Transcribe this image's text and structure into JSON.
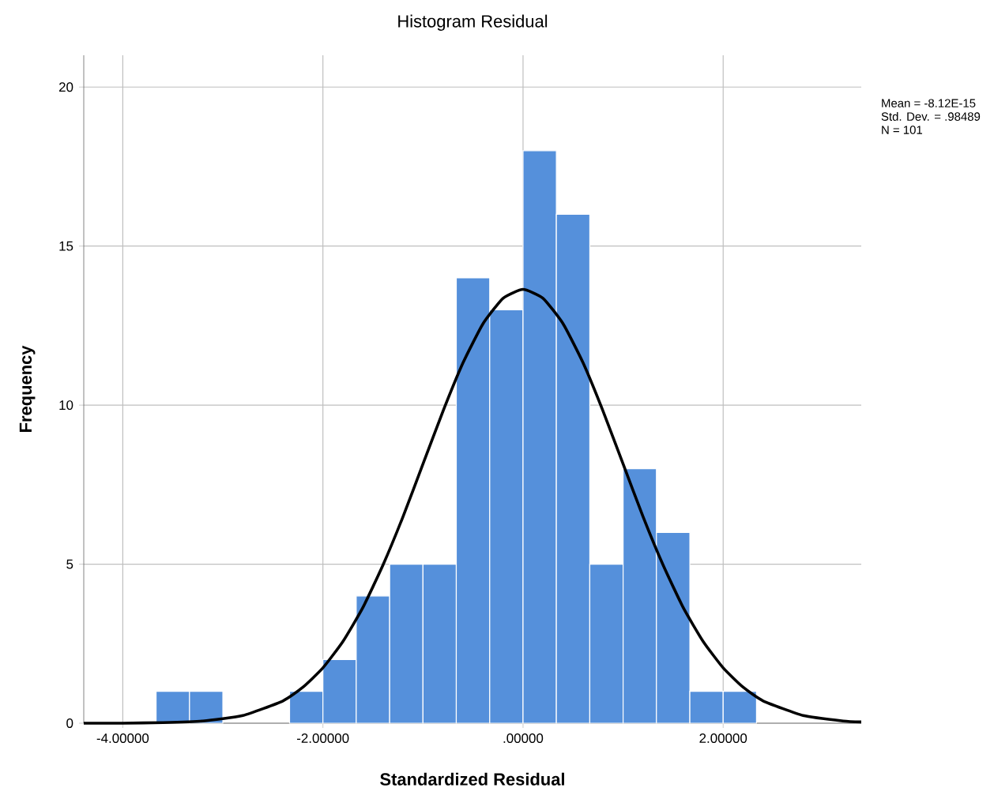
{
  "chart_data": {
    "type": "histogram",
    "title": "Histogram Residual",
    "xlabel": "Standardized Residual",
    "ylabel": "Frequency",
    "series": [
      {
        "type": "histogram",
        "color": "#5590db",
        "bins": [
          -3.667,
          -3.333,
          -3.0,
          -2.667,
          -2.333,
          -2.0,
          -1.667,
          -1.333,
          -1.0,
          -0.667,
          -0.333,
          0.0,
          0.333,
          0.667,
          1.0,
          1.333,
          1.667,
          2.0,
          2.333
        ],
        "values": [
          1,
          1,
          0,
          0,
          1,
          2,
          4,
          5,
          5,
          14,
          13,
          18,
          16,
          5,
          8,
          6,
          1,
          1
        ]
      },
      {
        "type": "line",
        "color": "#000000",
        "x": [
          -4.39,
          -4.0,
          -3.6,
          -3.2,
          -2.8,
          -2.4,
          -2.2,
          -2.0,
          -1.8,
          -1.6,
          -1.4,
          -1.2,
          -1.0,
          -0.8,
          -0.6,
          -0.4,
          -0.2,
          0.0,
          0.2,
          0.4,
          0.6,
          0.8,
          1.0,
          1.2,
          1.4,
          1.6,
          1.8,
          2.0,
          2.2,
          2.4,
          2.8,
          3.2,
          3.38
        ],
        "values": [
          0.0,
          0.0,
          0.02,
          0.07,
          0.24,
          0.7,
          1.13,
          1.74,
          2.57,
          3.64,
          4.97,
          6.49,
          8.15,
          9.81,
          11.33,
          12.56,
          13.36,
          13.64,
          13.36,
          12.56,
          11.33,
          9.81,
          8.15,
          6.49,
          4.97,
          3.64,
          2.57,
          1.74,
          1.13,
          0.7,
          0.24,
          0.07,
          0.04
        ]
      }
    ],
    "xlim": [
      -4.39,
      3.38
    ],
    "ylim": [
      0,
      21
    ],
    "xticks": [
      {
        "value": -4,
        "label": "-4.00000"
      },
      {
        "value": -2,
        "label": "-2.00000"
      },
      {
        "value": 0,
        "label": ".00000"
      },
      {
        "value": 2,
        "label": "2.00000"
      }
    ],
    "yticks": [
      0,
      5,
      10,
      15,
      20
    ],
    "grid": true,
    "annotations": [
      "Mean = -8.12E-15",
      "Std. Dev. = .98489",
      "N = 101"
    ]
  }
}
